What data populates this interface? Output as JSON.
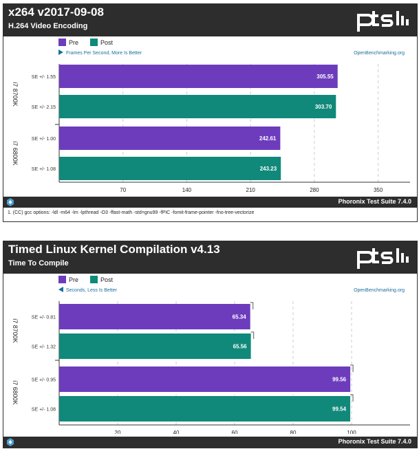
{
  "colors": {
    "pre": "#6d3cbd",
    "post": "#10897a",
    "header_bg": "#2d2d2d",
    "link": "#1a6e9a"
  },
  "chart_data": [
    {
      "type": "bar",
      "orientation": "horizontal",
      "title": "x264 v2017-09-08",
      "subtitle": "H.264 Video Encoding",
      "metric_note": "Frames Per Second, More Is Better",
      "direction": "more-is-better",
      "watermark": "OpenBenchmarking.org",
      "legend": [
        "Pre",
        "Post"
      ],
      "legend_placement": "top-left",
      "grid": true,
      "xlim": [
        0,
        385
      ],
      "ticks": [
        "70",
        "140",
        "210",
        "280",
        "350"
      ],
      "groups": [
        {
          "name": "i7 8700K",
          "bars": [
            {
              "series": "Pre",
              "value": 305.55,
              "label": "305.55",
              "se": "SE +/- 1.55"
            },
            {
              "series": "Post",
              "value": 303.7,
              "label": "303.70",
              "se": "SE +/- 2.15"
            }
          ]
        },
        {
          "name": "i7 6800K",
          "bars": [
            {
              "series": "Pre",
              "value": 242.61,
              "label": "242.61",
              "se": "SE +/- 1.00"
            },
            {
              "series": "Post",
              "value": 243.23,
              "label": "243.23",
              "se": "SE +/- 1.08"
            }
          ]
        }
      ],
      "footer": "Phoronix Test Suite 7.4.0",
      "note": "1. (CC) gcc options: -ldl -m64 -lm -lpthread -O3 -ffast-math -std=gnu99 -fPIC -fomit-frame-pointer -fno-tree-vectorize"
    },
    {
      "type": "bar",
      "orientation": "horizontal",
      "title": "Timed Linux Kernel Compilation v4.13",
      "subtitle": "Time To Compile",
      "metric_note": "Seconds, Less Is Better",
      "direction": "less-is-better",
      "watermark": "OpenBenchmarking.org",
      "legend": [
        "Pre",
        "Post"
      ],
      "legend_placement": "top-left",
      "grid": true,
      "xlim": [
        0,
        120
      ],
      "ticks": [
        "20",
        "40",
        "60",
        "80",
        "100"
      ],
      "groups": [
        {
          "name": "i7 8700K",
          "bars": [
            {
              "series": "Pre",
              "value": 65.34,
              "label": "65.34",
              "se": "SE +/- 0.81"
            },
            {
              "series": "Post",
              "value": 65.56,
              "label": "65.56",
              "se": "SE +/- 1.32"
            }
          ]
        },
        {
          "name": "i7 6800K",
          "bars": [
            {
              "series": "Pre",
              "value": 99.56,
              "label": "99.56",
              "se": "SE +/- 0.95"
            },
            {
              "series": "Post",
              "value": 99.54,
              "label": "99.54",
              "se": "SE +/- 1.08"
            }
          ]
        }
      ],
      "footer": "Phoronix Test Suite 7.4.0"
    }
  ]
}
